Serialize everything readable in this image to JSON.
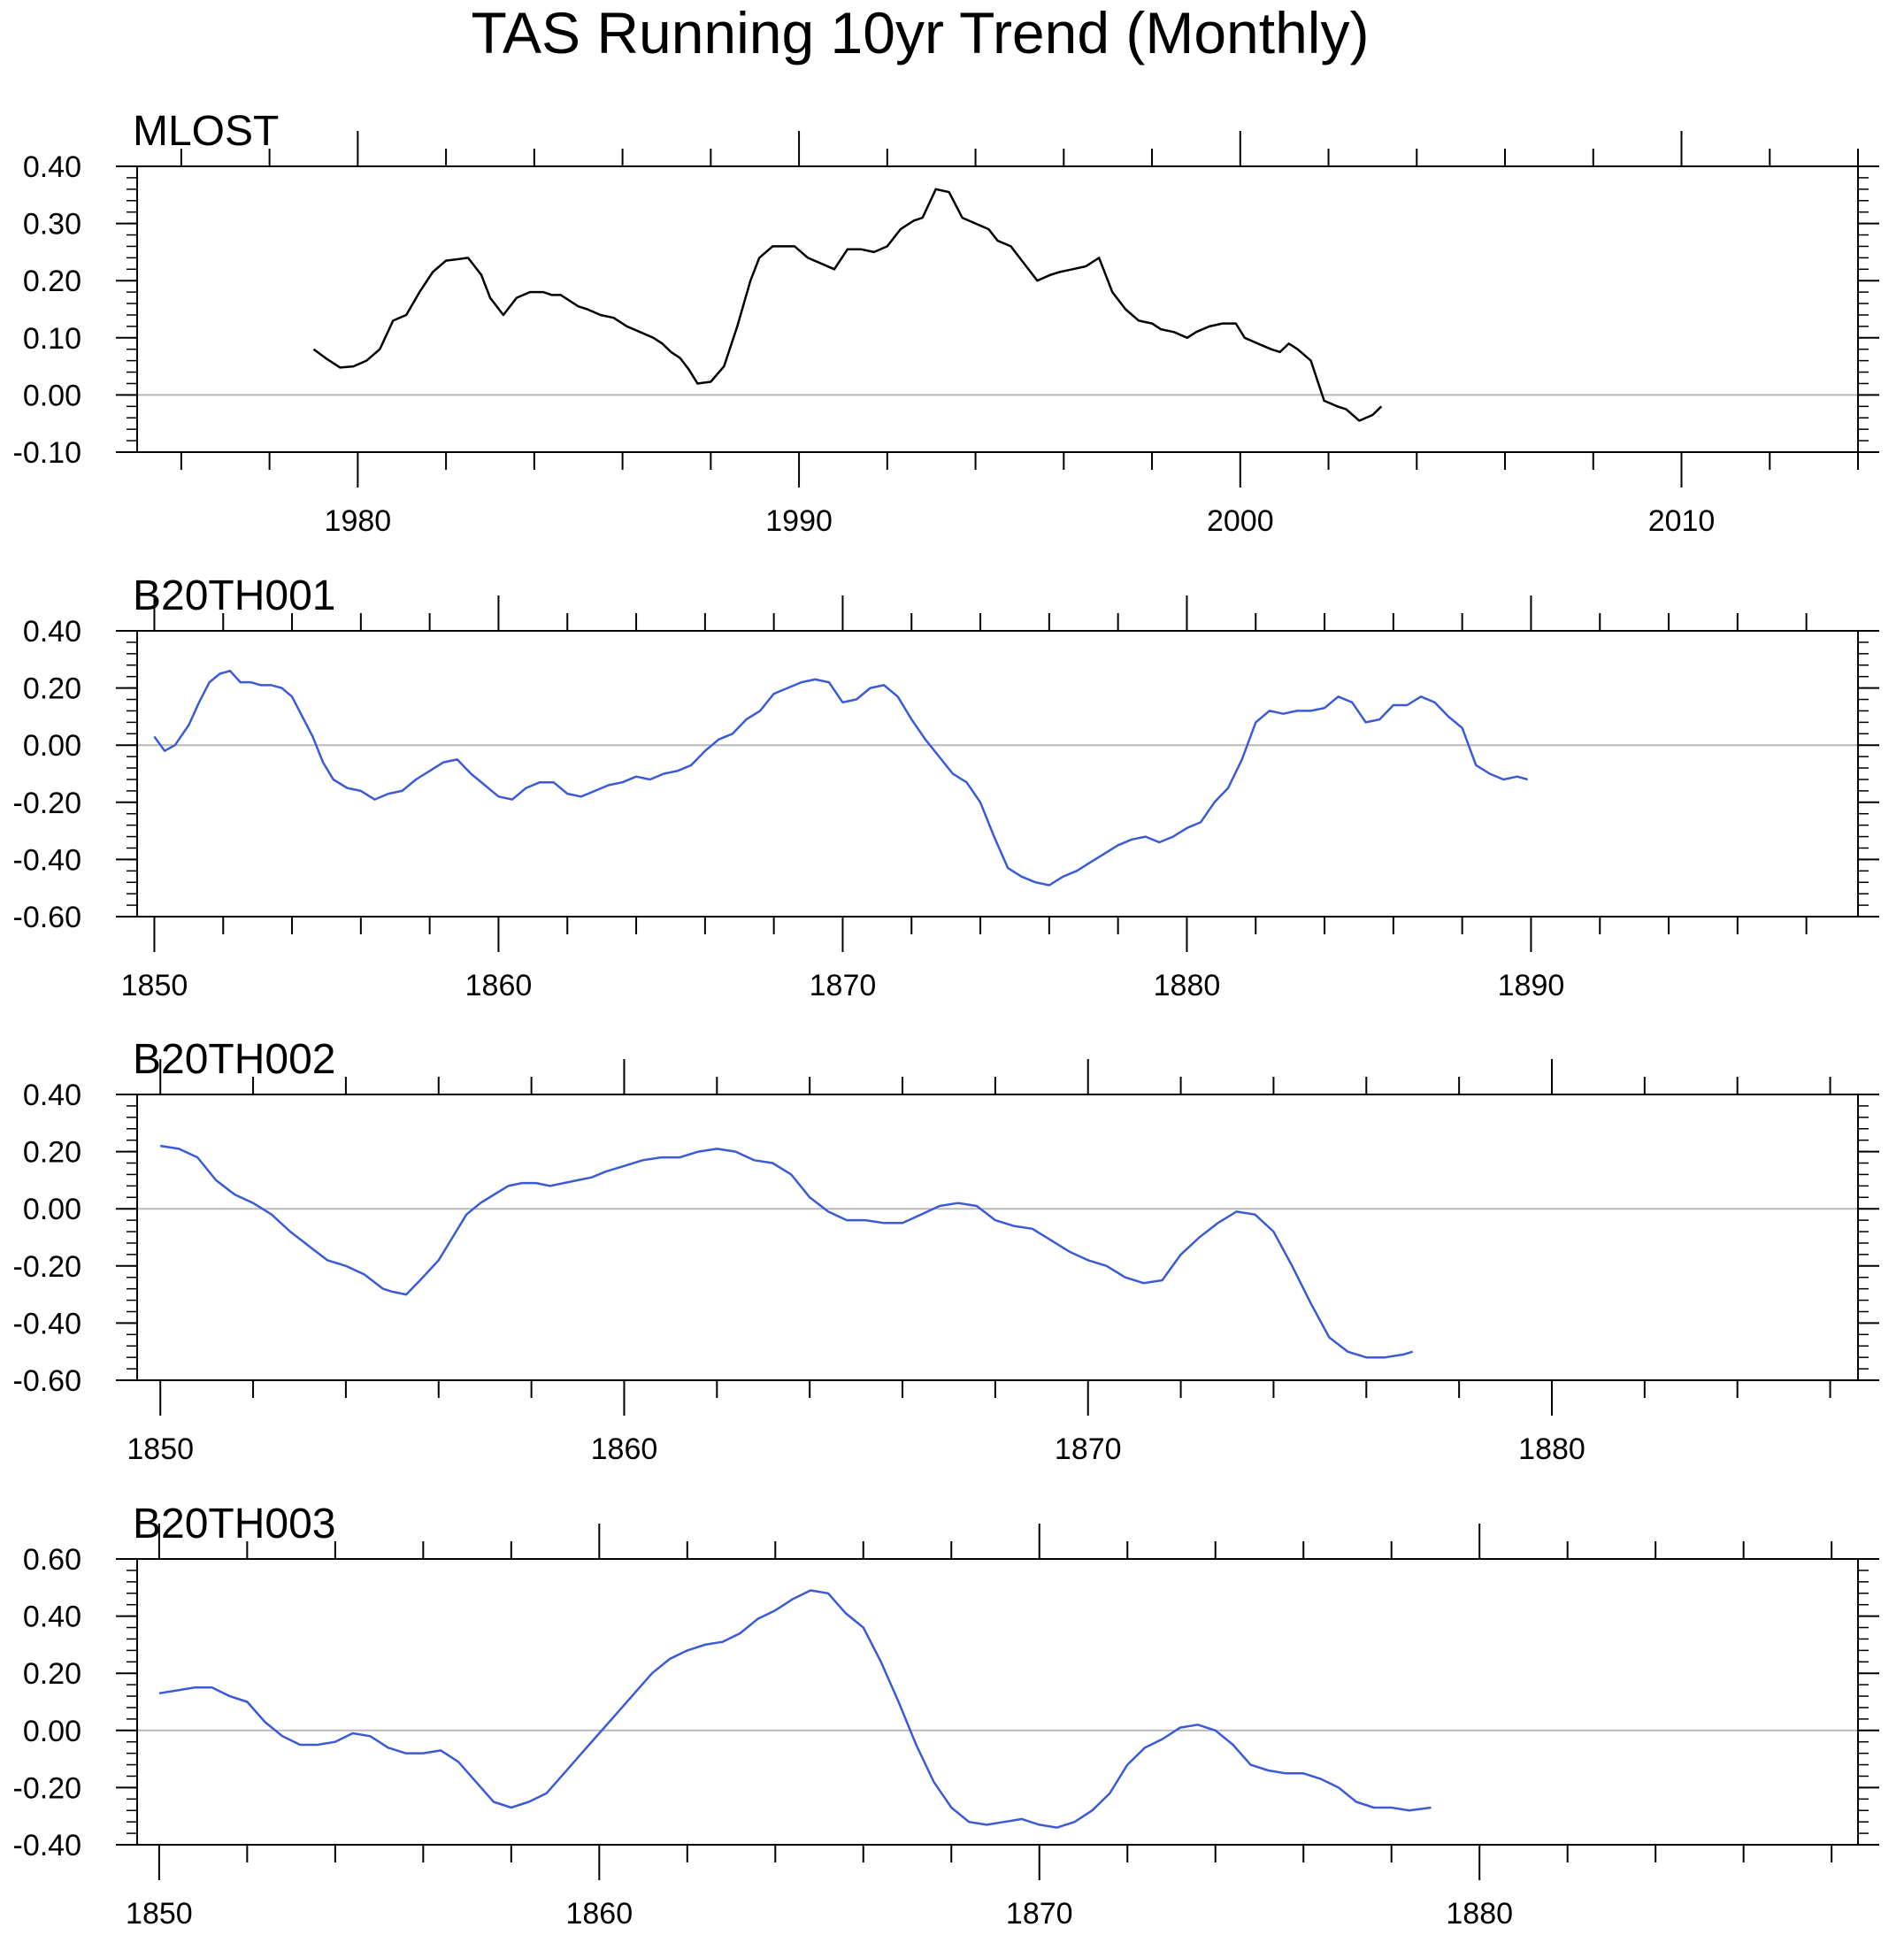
{
  "figure": {
    "title": "TAS Running 10yr Trend (Monthly)"
  },
  "chart_data": [
    {
      "type": "line",
      "title": "MLOST",
      "xlabel": "",
      "ylabel": "",
      "xlim": [
        1975,
        2014
      ],
      "ylim": [
        -0.1,
        0.4
      ],
      "x_ticks": [
        1980,
        1990,
        2000,
        2010
      ],
      "y_ticks": [
        -0.1,
        0.0,
        0.1,
        0.2,
        0.3,
        0.4
      ],
      "y_tick_decimals": 2,
      "zero_line": true,
      "series": [
        {
          "color": "#000000",
          "x": [
            1979.0,
            1979.3,
            1979.6,
            1979.9,
            1980.2,
            1980.5,
            1980.8,
            1981.1,
            1981.4,
            1981.7,
            1982.0,
            1982.3,
            1982.5,
            1982.8,
            1983.0,
            1983.3,
            1983.6,
            1983.9,
            1984.2,
            1984.4,
            1984.6,
            1985.0,
            1985.2,
            1985.5,
            1985.8,
            1986.1,
            1986.4,
            1986.7,
            1986.9,
            1987.1,
            1987.3,
            1987.5,
            1987.7,
            1988.0,
            1988.3,
            1988.6,
            1988.9,
            1989.1,
            1989.4,
            1989.7,
            1989.9,
            1990.2,
            1990.5,
            1990.8,
            1991.1,
            1991.4,
            1991.7,
            1992.0,
            1992.3,
            1992.6,
            1992.8,
            1993.1,
            1993.4,
            1993.7,
            1994.0,
            1994.3,
            1994.5,
            1994.8,
            1995.1,
            1995.4,
            1995.7,
            1995.9,
            1996.2,
            1996.5,
            1996.8,
            1997.1,
            1997.4,
            1997.7,
            1998.0,
            1998.2,
            1998.5,
            1998.8,
            1999.0,
            1999.3,
            1999.6,
            1999.9,
            2000.1,
            2000.4,
            2000.7,
            2000.9,
            2001.1,
            2001.3,
            2001.6,
            2001.9,
            2002.2,
            2002.4,
            2002.7,
            2003.0,
            2003.2
          ],
          "y": [
            0.08,
            0.063,
            0.048,
            0.05,
            0.06,
            0.08,
            0.13,
            0.14,
            0.18,
            0.215,
            0.235,
            0.238,
            0.24,
            0.21,
            0.17,
            0.14,
            0.17,
            0.18,
            0.18,
            0.175,
            0.175,
            0.155,
            0.15,
            0.14,
            0.135,
            0.12,
            0.11,
            0.1,
            0.09,
            0.075,
            0.065,
            0.045,
            0.02,
            0.023,
            0.05,
            0.12,
            0.2,
            0.24,
            0.26,
            0.26,
            0.26,
            0.24,
            0.23,
            0.22,
            0.255,
            0.255,
            0.25,
            0.26,
            0.29,
            0.305,
            0.31,
            0.36,
            0.355,
            0.31,
            0.3,
            0.29,
            0.27,
            0.26,
            0.23,
            0.2,
            0.21,
            0.215,
            0.22,
            0.225,
            0.24,
            0.18,
            0.15,
            0.13,
            0.125,
            0.115,
            0.11,
            0.1,
            0.11,
            0.12,
            0.125,
            0.125,
            0.1,
            0.09,
            0.08,
            0.075,
            0.09,
            0.08,
            0.06,
            -0.01,
            -0.02,
            -0.025,
            -0.045,
            -0.035,
            -0.02
          ]
        }
      ]
    },
    {
      "type": "line",
      "title": "B20TH001",
      "xlabel": "",
      "ylabel": "",
      "xlim": [
        1849.5,
        1899.5
      ],
      "ylim": [
        -0.6,
        0.4
      ],
      "x_ticks": [
        1850,
        1860,
        1870,
        1880,
        1890
      ],
      "y_ticks": [
        -0.6,
        -0.4,
        -0.2,
        0.0,
        0.2,
        0.4
      ],
      "y_tick_decimals": 2,
      "zero_line": true,
      "series": [
        {
          "color": "#3b5bd6",
          "x": [
            1850.0,
            1850.3,
            1850.6,
            1851.0,
            1851.3,
            1851.6,
            1851.9,
            1852.2,
            1852.5,
            1852.8,
            1853.1,
            1853.4,
            1853.7,
            1854.0,
            1854.3,
            1854.6,
            1854.9,
            1855.2,
            1855.6,
            1856.0,
            1856.4,
            1856.8,
            1857.2,
            1857.6,
            1858.0,
            1858.4,
            1858.8,
            1859.2,
            1859.6,
            1860.0,
            1860.4,
            1860.8,
            1861.2,
            1861.6,
            1862.0,
            1862.4,
            1862.8,
            1863.2,
            1863.6,
            1864.0,
            1864.4,
            1864.8,
            1865.2,
            1865.6,
            1866.0,
            1866.4,
            1866.8,
            1867.2,
            1867.6,
            1868.0,
            1868.4,
            1868.8,
            1869.2,
            1869.6,
            1870.0,
            1870.4,
            1870.8,
            1871.2,
            1871.6,
            1872.0,
            1872.4,
            1872.8,
            1873.2,
            1873.6,
            1874.0,
            1874.4,
            1874.8,
            1875.2,
            1875.6,
            1876.0,
            1876.4,
            1876.8,
            1877.2,
            1877.6,
            1878.0,
            1878.4,
            1878.8,
            1879.2,
            1879.6,
            1880.0,
            1880.4,
            1880.8,
            1881.2,
            1881.6,
            1882.0,
            1882.4,
            1882.8,
            1883.2,
            1883.6,
            1884.0,
            1884.4,
            1884.8,
            1885.2,
            1885.6,
            1886.0,
            1886.4,
            1886.8,
            1887.2,
            1887.6,
            1888.0,
            1888.4,
            1888.8,
            1889.2,
            1889.6,
            1889.9
          ],
          "y": [
            0.03,
            -0.02,
            0.0,
            0.07,
            0.15,
            0.22,
            0.25,
            0.26,
            0.22,
            0.22,
            0.21,
            0.21,
            0.2,
            0.17,
            0.1,
            0.03,
            -0.06,
            -0.12,
            -0.15,
            -0.16,
            -0.19,
            -0.17,
            -0.16,
            -0.12,
            -0.09,
            -0.06,
            -0.05,
            -0.1,
            -0.14,
            -0.18,
            -0.19,
            -0.15,
            -0.13,
            -0.13,
            -0.17,
            -0.18,
            -0.16,
            -0.14,
            -0.13,
            -0.11,
            -0.12,
            -0.1,
            -0.09,
            -0.07,
            -0.02,
            0.02,
            0.04,
            0.09,
            0.12,
            0.18,
            0.2,
            0.22,
            0.23,
            0.22,
            0.15,
            0.16,
            0.2,
            0.21,
            0.17,
            0.09,
            0.02,
            -0.04,
            -0.1,
            -0.13,
            -0.2,
            -0.32,
            -0.43,
            -0.46,
            -0.48,
            -0.49,
            -0.46,
            -0.44,
            -0.41,
            -0.38,
            -0.35,
            -0.33,
            -0.32,
            -0.34,
            -0.32,
            -0.29,
            -0.27,
            -0.2,
            -0.15,
            -0.05,
            0.08,
            0.12,
            0.11,
            0.12,
            0.12,
            0.13,
            0.17,
            0.15,
            0.08,
            0.09,
            0.14,
            0.14,
            0.17,
            0.15,
            0.1,
            0.06,
            -0.07,
            -0.1,
            -0.12,
            -0.11,
            -0.12
          ]
        }
      ]
    },
    {
      "type": "line",
      "title": "B20TH002",
      "xlabel": "",
      "ylabel": "",
      "xlim": [
        1849.5,
        1886.6
      ],
      "ylim": [
        -0.6,
        0.4
      ],
      "x_ticks": [
        1850,
        1860,
        1870,
        1880
      ],
      "y_ticks": [
        -0.6,
        -0.4,
        -0.2,
        0.0,
        0.2,
        0.4
      ],
      "y_tick_decimals": 2,
      "zero_line": true,
      "series": [
        {
          "color": "#3b5bd6",
          "x": [
            1850.0,
            1850.4,
            1850.8,
            1851.2,
            1851.6,
            1852.0,
            1852.4,
            1852.8,
            1853.2,
            1853.6,
            1854.0,
            1854.4,
            1854.8,
            1855.0,
            1855.3,
            1855.6,
            1856.0,
            1856.3,
            1856.6,
            1856.9,
            1857.2,
            1857.5,
            1857.8,
            1858.1,
            1858.4,
            1858.7,
            1859.0,
            1859.3,
            1859.6,
            1860.0,
            1860.4,
            1860.8,
            1861.2,
            1861.6,
            1862.0,
            1862.4,
            1862.8,
            1863.2,
            1863.6,
            1864.0,
            1864.4,
            1864.8,
            1865.2,
            1865.6,
            1866.0,
            1866.4,
            1866.8,
            1867.2,
            1867.6,
            1868.0,
            1868.4,
            1868.8,
            1869.2,
            1869.6,
            1870.0,
            1870.4,
            1870.8,
            1871.2,
            1871.6,
            1872.0,
            1872.4,
            1872.8,
            1873.2,
            1873.6,
            1874.0,
            1874.4,
            1874.8,
            1875.2,
            1875.6,
            1876.0,
            1876.4,
            1876.8,
            1877.0
          ],
          "y": [
            0.22,
            0.21,
            0.18,
            0.1,
            0.05,
            0.02,
            -0.02,
            -0.08,
            -0.13,
            -0.18,
            -0.2,
            -0.23,
            -0.28,
            -0.29,
            -0.3,
            -0.25,
            -0.18,
            -0.1,
            -0.02,
            0.02,
            0.05,
            0.08,
            0.09,
            0.09,
            0.08,
            0.09,
            0.1,
            0.11,
            0.13,
            0.15,
            0.17,
            0.18,
            0.18,
            0.2,
            0.21,
            0.2,
            0.17,
            0.16,
            0.12,
            0.04,
            -0.01,
            -0.04,
            -0.04,
            -0.05,
            -0.05,
            -0.02,
            0.01,
            0.02,
            0.01,
            -0.04,
            -0.06,
            -0.07,
            -0.11,
            -0.15,
            -0.18,
            -0.2,
            -0.24,
            -0.26,
            -0.25,
            -0.16,
            -0.1,
            -0.05,
            -0.01,
            -0.02,
            -0.08,
            -0.2,
            -0.33,
            -0.45,
            -0.5,
            -0.52,
            -0.52,
            -0.51,
            -0.5
          ]
        }
      ]
    },
    {
      "type": "line",
      "title": "B20TH003",
      "xlabel": "",
      "ylabel": "",
      "xlim": [
        1849.5,
        1888.6
      ],
      "ylim": [
        -0.4,
        0.6
      ],
      "x_ticks": [
        1850,
        1860,
        1870,
        1880
      ],
      "y_ticks": [
        -0.4,
        -0.2,
        0.0,
        0.2,
        0.4,
        0.6
      ],
      "y_tick_decimals": 2,
      "zero_line": true,
      "series": [
        {
          "color": "#3b5bd6",
          "x": [
            1850.0,
            1850.4,
            1850.8,
            1851.2,
            1851.6,
            1852.0,
            1852.4,
            1852.8,
            1853.2,
            1853.6,
            1854.0,
            1854.4,
            1854.8,
            1855.2,
            1855.6,
            1856.0,
            1856.4,
            1856.8,
            1857.2,
            1857.6,
            1858.0,
            1858.4,
            1858.8,
            1859.2,
            1859.6,
            1860.0,
            1860.4,
            1860.8,
            1861.2,
            1861.6,
            1862.0,
            1862.4,
            1862.8,
            1863.2,
            1863.6,
            1864.0,
            1864.4,
            1864.8,
            1865.2,
            1865.6,
            1866.0,
            1866.4,
            1866.8,
            1867.2,
            1867.6,
            1868.0,
            1868.4,
            1868.8,
            1869.2,
            1869.6,
            1870.0,
            1870.4,
            1870.8,
            1871.2,
            1871.6,
            1872.0,
            1872.4,
            1872.8,
            1873.2,
            1873.6,
            1874.0,
            1874.4,
            1874.8,
            1875.2,
            1875.6,
            1876.0,
            1876.4,
            1876.8,
            1877.2,
            1877.6,
            1878.0,
            1878.4,
            1878.9
          ],
          "y": [
            0.13,
            0.14,
            0.15,
            0.15,
            0.12,
            0.1,
            0.03,
            -0.02,
            -0.05,
            -0.05,
            -0.04,
            -0.01,
            -0.02,
            -0.06,
            -0.08,
            -0.08,
            -0.07,
            -0.11,
            -0.18,
            -0.25,
            -0.27,
            -0.25,
            -0.22,
            -0.15,
            -0.08,
            -0.01,
            0.06,
            0.13,
            0.2,
            0.25,
            0.28,
            0.3,
            0.31,
            0.34,
            0.39,
            0.42,
            0.46,
            0.49,
            0.48,
            0.41,
            0.36,
            0.24,
            0.1,
            -0.05,
            -0.18,
            -0.27,
            -0.32,
            -0.33,
            -0.32,
            -0.31,
            -0.33,
            -0.34,
            -0.32,
            -0.28,
            -0.22,
            -0.12,
            -0.06,
            -0.03,
            0.01,
            0.02,
            0.0,
            -0.05,
            -0.12,
            -0.14,
            -0.15,
            -0.15,
            -0.17,
            -0.2,
            -0.25,
            -0.27,
            -0.27,
            -0.28,
            -0.27
          ]
        }
      ]
    }
  ]
}
